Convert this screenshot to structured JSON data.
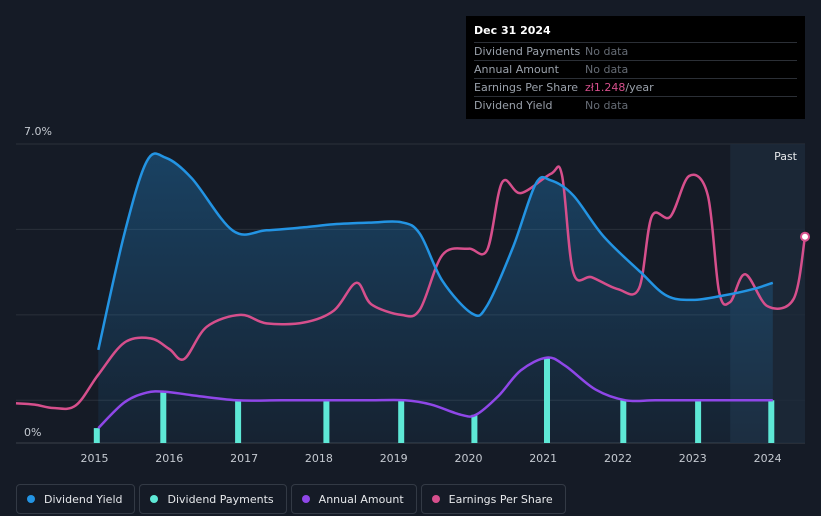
{
  "tooltip": {
    "date": "Dec 31 2024",
    "rows": [
      {
        "label": "Dividend Payments",
        "value": "No data"
      },
      {
        "label": "Annual Amount",
        "value": "No data"
      },
      {
        "label": "Earnings Per Share",
        "value": "zł1.248",
        "unit": "/year"
      },
      {
        "label": "Dividend Yield",
        "value": "No data"
      }
    ]
  },
  "legend": [
    {
      "label": "Dividend Yield",
      "color": "#2394e3"
    },
    {
      "label": "Dividend Payments",
      "color": "#5ee8d6"
    },
    {
      "label": "Annual Amount",
      "color": "#8f47e8"
    },
    {
      "label": "Earnings Per Share",
      "color": "#d64f8c"
    }
  ],
  "chart_data": {
    "type": "line",
    "x_ticks": [
      "2015",
      "2016",
      "2017",
      "2018",
      "2019",
      "2020",
      "2021",
      "2022",
      "2023",
      "2024"
    ],
    "y_ticks": [
      "7.0%",
      "0%"
    ],
    "ylim": [
      0,
      7.0
    ],
    "xlim": [
      2014.45,
      2025.0
    ],
    "past_label": "Past",
    "past_start": 2024.0,
    "series": [
      {
        "name": "Dividend Yield",
        "unit": "%",
        "points": [
          [
            2015.55,
            2.18
          ],
          [
            2015.9,
            4.9
          ],
          [
            2016.2,
            6.6
          ],
          [
            2016.45,
            6.68
          ],
          [
            2016.8,
            6.2
          ],
          [
            2017.35,
            4.97
          ],
          [
            2017.8,
            4.98
          ],
          [
            2018.3,
            5.05
          ],
          [
            2018.7,
            5.12
          ],
          [
            2019.2,
            5.16
          ],
          [
            2019.6,
            5.17
          ],
          [
            2019.85,
            4.9
          ],
          [
            2020.15,
            3.8
          ],
          [
            2020.55,
            3.03
          ],
          [
            2020.75,
            3.22
          ],
          [
            2021.1,
            4.6
          ],
          [
            2021.4,
            6.07
          ],
          [
            2021.6,
            6.15
          ],
          [
            2021.9,
            5.8
          ],
          [
            2022.3,
            4.85
          ],
          [
            2022.8,
            4.0
          ],
          [
            2023.15,
            3.45
          ],
          [
            2023.5,
            3.35
          ],
          [
            2023.9,
            3.45
          ],
          [
            2024.3,
            3.6
          ],
          [
            2024.57,
            3.75
          ]
        ]
      },
      {
        "name": "Earnings Per Share",
        "unit": "zł",
        "points": [
          [
            2014.45,
            0.93
          ],
          [
            2014.7,
            0.9
          ],
          [
            2014.95,
            0.82
          ],
          [
            2015.25,
            0.88
          ],
          [
            2015.55,
            1.6
          ],
          [
            2015.9,
            2.35
          ],
          [
            2016.25,
            2.45
          ],
          [
            2016.5,
            2.2
          ],
          [
            2016.7,
            1.97
          ],
          [
            2017.0,
            2.72
          ],
          [
            2017.45,
            3.0
          ],
          [
            2017.8,
            2.8
          ],
          [
            2018.3,
            2.82
          ],
          [
            2018.7,
            3.1
          ],
          [
            2019.0,
            3.75
          ],
          [
            2019.2,
            3.25
          ],
          [
            2019.6,
            3.0
          ],
          [
            2019.85,
            3.12
          ],
          [
            2020.15,
            4.4
          ],
          [
            2020.5,
            4.55
          ],
          [
            2020.75,
            4.52
          ],
          [
            2020.95,
            6.1
          ],
          [
            2021.2,
            5.85
          ],
          [
            2021.6,
            6.3
          ],
          [
            2021.75,
            6.28
          ],
          [
            2021.9,
            4.0
          ],
          [
            2022.15,
            3.88
          ],
          [
            2022.5,
            3.6
          ],
          [
            2022.78,
            3.62
          ],
          [
            2022.95,
            5.3
          ],
          [
            2023.2,
            5.3
          ],
          [
            2023.45,
            6.25
          ],
          [
            2023.7,
            5.8
          ],
          [
            2023.85,
            3.55
          ],
          [
            2024.0,
            3.3
          ],
          [
            2024.2,
            3.95
          ],
          [
            2024.5,
            3.2
          ],
          [
            2024.85,
            3.38
          ],
          [
            2025.0,
            4.83
          ]
        ]
      },
      {
        "name": "Annual Amount",
        "unit": "%",
        "points": [
          [
            2015.55,
            0.35
          ],
          [
            2015.9,
            0.95
          ],
          [
            2016.2,
            1.18
          ],
          [
            2016.45,
            1.2
          ],
          [
            2016.8,
            1.12
          ],
          [
            2017.4,
            1.0
          ],
          [
            2018.0,
            1.0
          ],
          [
            2018.7,
            1.0
          ],
          [
            2019.2,
            1.0
          ],
          [
            2019.65,
            1.0
          ],
          [
            2020.0,
            0.9
          ],
          [
            2020.4,
            0.66
          ],
          [
            2020.6,
            0.66
          ],
          [
            2020.9,
            1.1
          ],
          [
            2021.2,
            1.7
          ],
          [
            2021.55,
            2.0
          ],
          [
            2021.8,
            1.8
          ],
          [
            2022.2,
            1.25
          ],
          [
            2022.6,
            1.0
          ],
          [
            2023.0,
            1.0
          ],
          [
            2023.6,
            1.0
          ],
          [
            2024.1,
            1.0
          ],
          [
            2024.57,
            1.0
          ]
        ]
      }
    ],
    "bars": {
      "name": "Dividend Payments",
      "x": [
        2015.53,
        2016.42,
        2017.42,
        2018.6,
        2019.6,
        2020.58,
        2021.55,
        2022.57,
        2023.57,
        2024.55
      ],
      "values": [
        0.35,
        1.2,
        1.0,
        1.0,
        1.0,
        0.66,
        2.0,
        1.0,
        1.0,
        1.0
      ]
    }
  }
}
